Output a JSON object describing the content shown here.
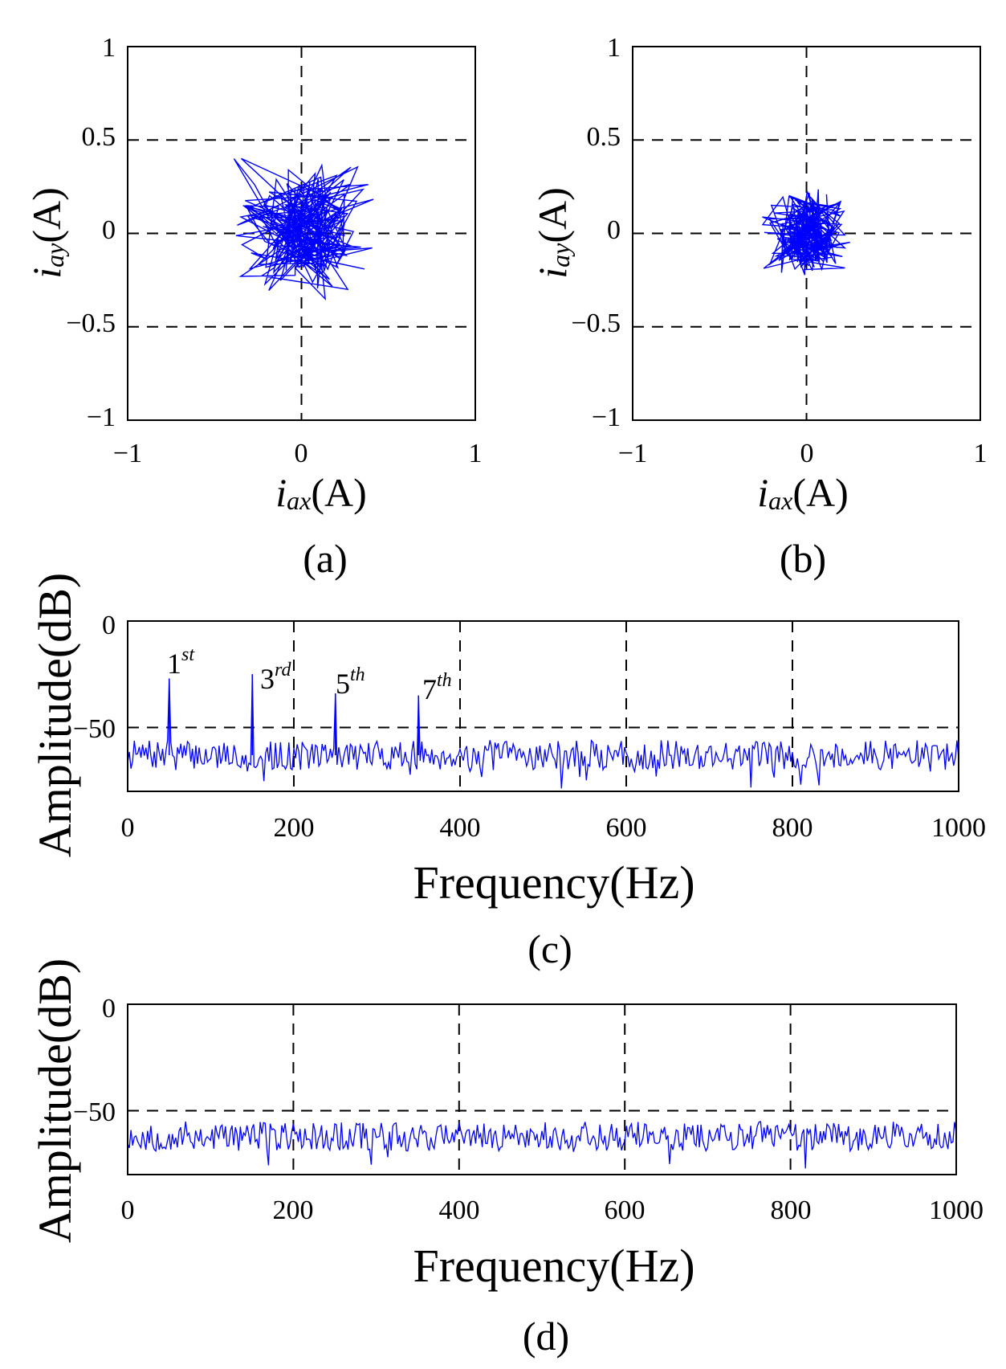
{
  "chart_data": [
    {
      "panel_label": "(a)",
      "type": "scatter",
      "xlabel": {
        "var": "i",
        "sub": "ax",
        "unit": "(A)"
      },
      "ylabel": {
        "var": "i",
        "sub": "ay",
        "unit": "(A)"
      },
      "xlim": [
        -1,
        1
      ],
      "ylim": [
        -1,
        1
      ],
      "xticks": [
        "−1",
        "0",
        "1"
      ],
      "yticks": [
        "1",
        "0.5",
        "0",
        "−0.5",
        "−1"
      ],
      "grid": "dashed at 0 and ±0.5",
      "series": [
        {
          "name": "current trajectory",
          "color": "#0000ff",
          "spread_x": 0.46,
          "spread_y": 0.42,
          "style": "line"
        }
      ]
    },
    {
      "panel_label": "(b)",
      "type": "scatter",
      "xlabel": {
        "var": "i",
        "sub": "ax",
        "unit": "(A)"
      },
      "ylabel": {
        "var": "i",
        "sub": "ay",
        "unit": "(A)"
      },
      "xlim": [
        -1,
        1
      ],
      "ylim": [
        -1,
        1
      ],
      "xticks": [
        "−1",
        "0",
        "1"
      ],
      "yticks": [
        "1",
        "0.5",
        "0",
        "−0.5",
        "−1"
      ],
      "grid": "dashed at 0 and ±0.5",
      "series": [
        {
          "name": "current trajectory",
          "color": "#0000ff",
          "spread_x": 0.27,
          "spread_y": 0.27,
          "style": "line"
        }
      ]
    },
    {
      "panel_label": "(c)",
      "type": "line",
      "xlabel": "Frequency(Hz)",
      "ylabel": "Amplitude(dB)",
      "xlim": [
        0,
        1000
      ],
      "ylim": [
        -80,
        0
      ],
      "xticks": [
        "0",
        "200",
        "400",
        "600",
        "800",
        "1000"
      ],
      "yticks": [
        "0",
        "−50"
      ],
      "noise_floor_db": -63,
      "peaks": [
        {
          "freq": 50,
          "db": -27,
          "label": "1",
          "sup": "st"
        },
        {
          "freq": 150,
          "db": -25,
          "label": "3",
          "sup": "rd"
        },
        {
          "freq": 250,
          "db": -34,
          "label": "5",
          "sup": "th"
        },
        {
          "freq": 350,
          "db": -35,
          "label": "7",
          "sup": "th"
        }
      ],
      "series": [
        {
          "name": "spectrum",
          "color": "#0000ff"
        }
      ]
    },
    {
      "panel_label": "(d)",
      "type": "line",
      "xlabel": "Frequency(Hz)",
      "ylabel": "Amplitude(dB)",
      "xlim": [
        0,
        1000
      ],
      "ylim": [
        -80,
        0
      ],
      "xticks": [
        "0",
        "200",
        "400",
        "600",
        "800",
        "1000"
      ],
      "yticks": [
        "0",
        "−50"
      ],
      "noise_floor_db": -62,
      "peaks": [],
      "series": [
        {
          "name": "spectrum",
          "color": "#0000ff"
        }
      ]
    }
  ]
}
